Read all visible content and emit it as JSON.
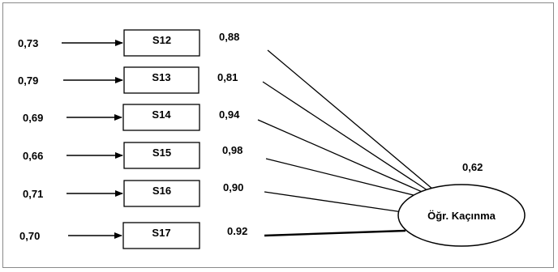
{
  "factor": {
    "label": "Öğr. Kaçınma",
    "r_squared": "0,62"
  },
  "items": [
    {
      "name": "S12",
      "error": "0,73",
      "loading": "0,88"
    },
    {
      "name": "S13",
      "error": "0,79",
      "loading": "0,81"
    },
    {
      "name": "S14",
      "error": "0,69",
      "loading": "0,94"
    },
    {
      "name": "S15",
      "error": "0,66",
      "loading": "0,98"
    },
    {
      "name": "S16",
      "error": "0,71",
      "loading": "0,90"
    },
    {
      "name": "S17",
      "error": "0,70",
      "loading": "0.92"
    }
  ]
}
